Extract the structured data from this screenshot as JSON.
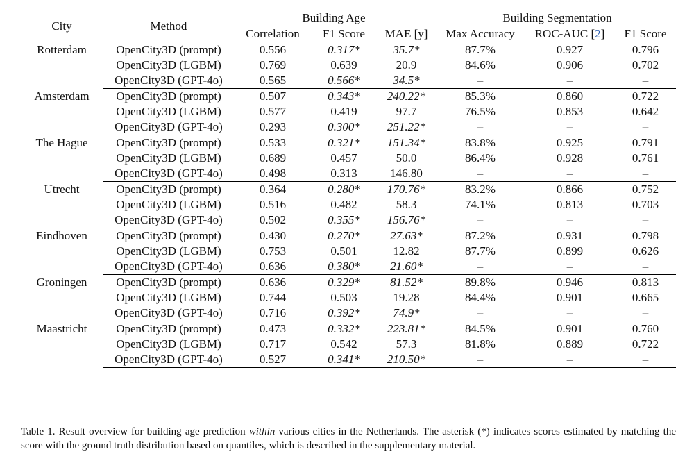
{
  "header": {
    "city": "City",
    "method": "Method",
    "group_age": "Building Age",
    "group_seg": "Building Segmentation",
    "correlation": "Correlation",
    "f1_age": "F1 Score",
    "mae": "MAE [y]",
    "max_acc": "Max Accuracy",
    "roc_auc": "ROC-AUC [",
    "roc_cite": "2",
    "roc_close": "]",
    "f1_seg": "F1 Score"
  },
  "rows": [
    {
      "city": "Rotterdam",
      "items": [
        {
          "method": "OpenCity3D (prompt)",
          "corr": "0.556",
          "f1": "0.317*",
          "mae": "35.7*",
          "acc": "87.7%",
          "roc": "0.927",
          "f1s": "0.796",
          "st": [
            "",
            "i",
            "i",
            "b",
            "b",
            "b"
          ]
        },
        {
          "method": "OpenCity3D (LGBM)",
          "corr": "0.769",
          "f1": "0.639",
          "mae": "20.9",
          "acc": "84.6%",
          "roc": "0.906",
          "f1s": "0.702",
          "st": [
            "b",
            "b",
            "b",
            "",
            "",
            ""
          ]
        },
        {
          "method": "OpenCity3D (GPT-4o)",
          "corr": "0.565",
          "f1": "0.566*",
          "mae": "34.5*",
          "acc": "–",
          "roc": "–",
          "f1s": "–",
          "st": [
            "",
            "i",
            "i",
            "",
            "",
            ""
          ]
        }
      ]
    },
    {
      "city": "Amsterdam",
      "items": [
        {
          "method": "OpenCity3D (prompt)",
          "corr": "0.507",
          "f1": "0.343*",
          "mae": "240.22*",
          "acc": "85.3%",
          "roc": "0.860",
          "f1s": "0.722",
          "st": [
            "",
            "i",
            "i",
            "b",
            "b",
            "b"
          ]
        },
        {
          "method": "OpenCity3D (LGBM)",
          "corr": "0.577",
          "f1": "0.419",
          "mae": "97.7",
          "acc": "76.5%",
          "roc": "0.853",
          "f1s": "0.642",
          "st": [
            "b",
            "b",
            "b",
            "",
            "",
            ""
          ]
        },
        {
          "method": "OpenCity3D (GPT-4o)",
          "corr": "0.293",
          "f1": "0.300*",
          "mae": "251.22*",
          "acc": "–",
          "roc": "–",
          "f1s": "–",
          "st": [
            "",
            "i",
            "i",
            "",
            "",
            ""
          ]
        }
      ]
    },
    {
      "city": "The Hague",
      "items": [
        {
          "method": "OpenCity3D (prompt)",
          "corr": "0.533",
          "f1": "0.321*",
          "mae": "151.34*",
          "acc": "83.8%",
          "roc": "0.925",
          "f1s": "0.791",
          "st": [
            "",
            "i",
            "i",
            "",
            "",
            "b"
          ]
        },
        {
          "method": "OpenCity3D (LGBM)",
          "corr": "0.689",
          "f1": "0.457",
          "mae": "50.0",
          "acc": "86.4%",
          "roc": "0.928",
          "f1s": "0.761",
          "st": [
            "b",
            "b",
            "b",
            "b",
            "b",
            ""
          ]
        },
        {
          "method": "OpenCity3D (GPT-4o)",
          "corr": "0.498",
          "f1": "0.313",
          "mae": "146.80",
          "acc": "–",
          "roc": "–",
          "f1s": "–",
          "st": [
            "",
            "",
            "",
            "",
            "",
            ""
          ]
        }
      ]
    },
    {
      "city": "Utrecht",
      "items": [
        {
          "method": "OpenCity3D (prompt)",
          "corr": "0.364",
          "f1": "0.280*",
          "mae": "170.76*",
          "acc": "83.2%",
          "roc": "0.866",
          "f1s": "0.752",
          "st": [
            "",
            "i",
            "i",
            "b",
            "b",
            "b"
          ]
        },
        {
          "method": "OpenCity3D (LGBM)",
          "corr": "0.516",
          "f1": "0.482",
          "mae": "58.3",
          "acc": "74.1%",
          "roc": "0.813",
          "f1s": "0.703",
          "st": [
            "b",
            "b",
            "b",
            "",
            "",
            ""
          ]
        },
        {
          "method": "OpenCity3D (GPT-4o)",
          "corr": "0.502",
          "f1": "0.355*",
          "mae": "156.76*",
          "acc": "–",
          "roc": "–",
          "f1s": "–",
          "st": [
            "",
            "i",
            "i",
            "",
            "",
            ""
          ]
        }
      ]
    },
    {
      "city": "Eindhoven",
      "items": [
        {
          "method": "OpenCity3D (prompt)",
          "corr": "0.430",
          "f1": "0.270*",
          "mae": "27.63*",
          "acc": "87.2%",
          "roc": "0.931",
          "f1s": "0.798",
          "st": [
            "",
            "i",
            "i",
            "",
            "b",
            "b"
          ]
        },
        {
          "method": "OpenCity3D (LGBM)",
          "corr": "0.753",
          "f1": "0.501",
          "mae": "12.82",
          "acc": "87.7%",
          "roc": "0.899",
          "f1s": "0.626",
          "st": [
            "b",
            "b",
            "b",
            "b",
            "",
            ""
          ]
        },
        {
          "method": "OpenCity3D (GPT-4o)",
          "corr": "0.636",
          "f1": "0.380*",
          "mae": "21.60*",
          "acc": "–",
          "roc": "–",
          "f1s": "–",
          "st": [
            "",
            "i",
            "i",
            "",
            "",
            ""
          ]
        }
      ]
    },
    {
      "city": "Groningen",
      "items": [
        {
          "method": "OpenCity3D (prompt)",
          "corr": "0.636",
          "f1": "0.329*",
          "mae": "81.52*",
          "acc": "89.8%",
          "roc": "0.946",
          "f1s": "0.813",
          "st": [
            "",
            "i",
            "i",
            "b",
            "b",
            "b"
          ]
        },
        {
          "method": "OpenCity3D (LGBM)",
          "corr": "0.744",
          "f1": "0.503",
          "mae": "19.28",
          "acc": "84.4%",
          "roc": "0.901",
          "f1s": "0.665",
          "st": [
            "b",
            "b",
            "b",
            "",
            "",
            ""
          ]
        },
        {
          "method": "OpenCity3D (GPT-4o)",
          "corr": "0.716",
          "f1": "0.392*",
          "mae": "74.9*",
          "acc": "–",
          "roc": "–",
          "f1s": "–",
          "st": [
            "",
            "i",
            "i",
            "",
            "",
            ""
          ]
        }
      ]
    },
    {
      "city": "Maastricht",
      "items": [
        {
          "method": "OpenCity3D (prompt)",
          "corr": "0.473",
          "f1": "0.332*",
          "mae": "223.81*",
          "acc": "84.5%",
          "roc": "0.901",
          "f1s": "0.760",
          "st": [
            "",
            "i",
            "i",
            "b",
            "b",
            "b"
          ]
        },
        {
          "method": "OpenCity3D (LGBM)",
          "corr": "0.717",
          "f1": "0.542",
          "mae": "57.3",
          "acc": "81.8%",
          "roc": "0.889",
          "f1s": "0.722",
          "st": [
            "b",
            "b",
            "b",
            "",
            "",
            ""
          ]
        },
        {
          "method": "OpenCity3D (GPT-4o)",
          "corr": "0.527",
          "f1": "0.341*",
          "mae": "210.50*",
          "acc": "–",
          "roc": "–",
          "f1s": "–",
          "st": [
            "",
            "i",
            "i",
            "",
            "",
            ""
          ]
        }
      ]
    }
  ],
  "caption": {
    "prefix": "Table 1. Result overview for building age prediction ",
    "emph": "within",
    "suffix": " various cities in the Netherlands. The asterisk (*) indicates scores estimated by matching the score with the ground truth distribution based on quantiles, which is described in the supplementary material."
  }
}
